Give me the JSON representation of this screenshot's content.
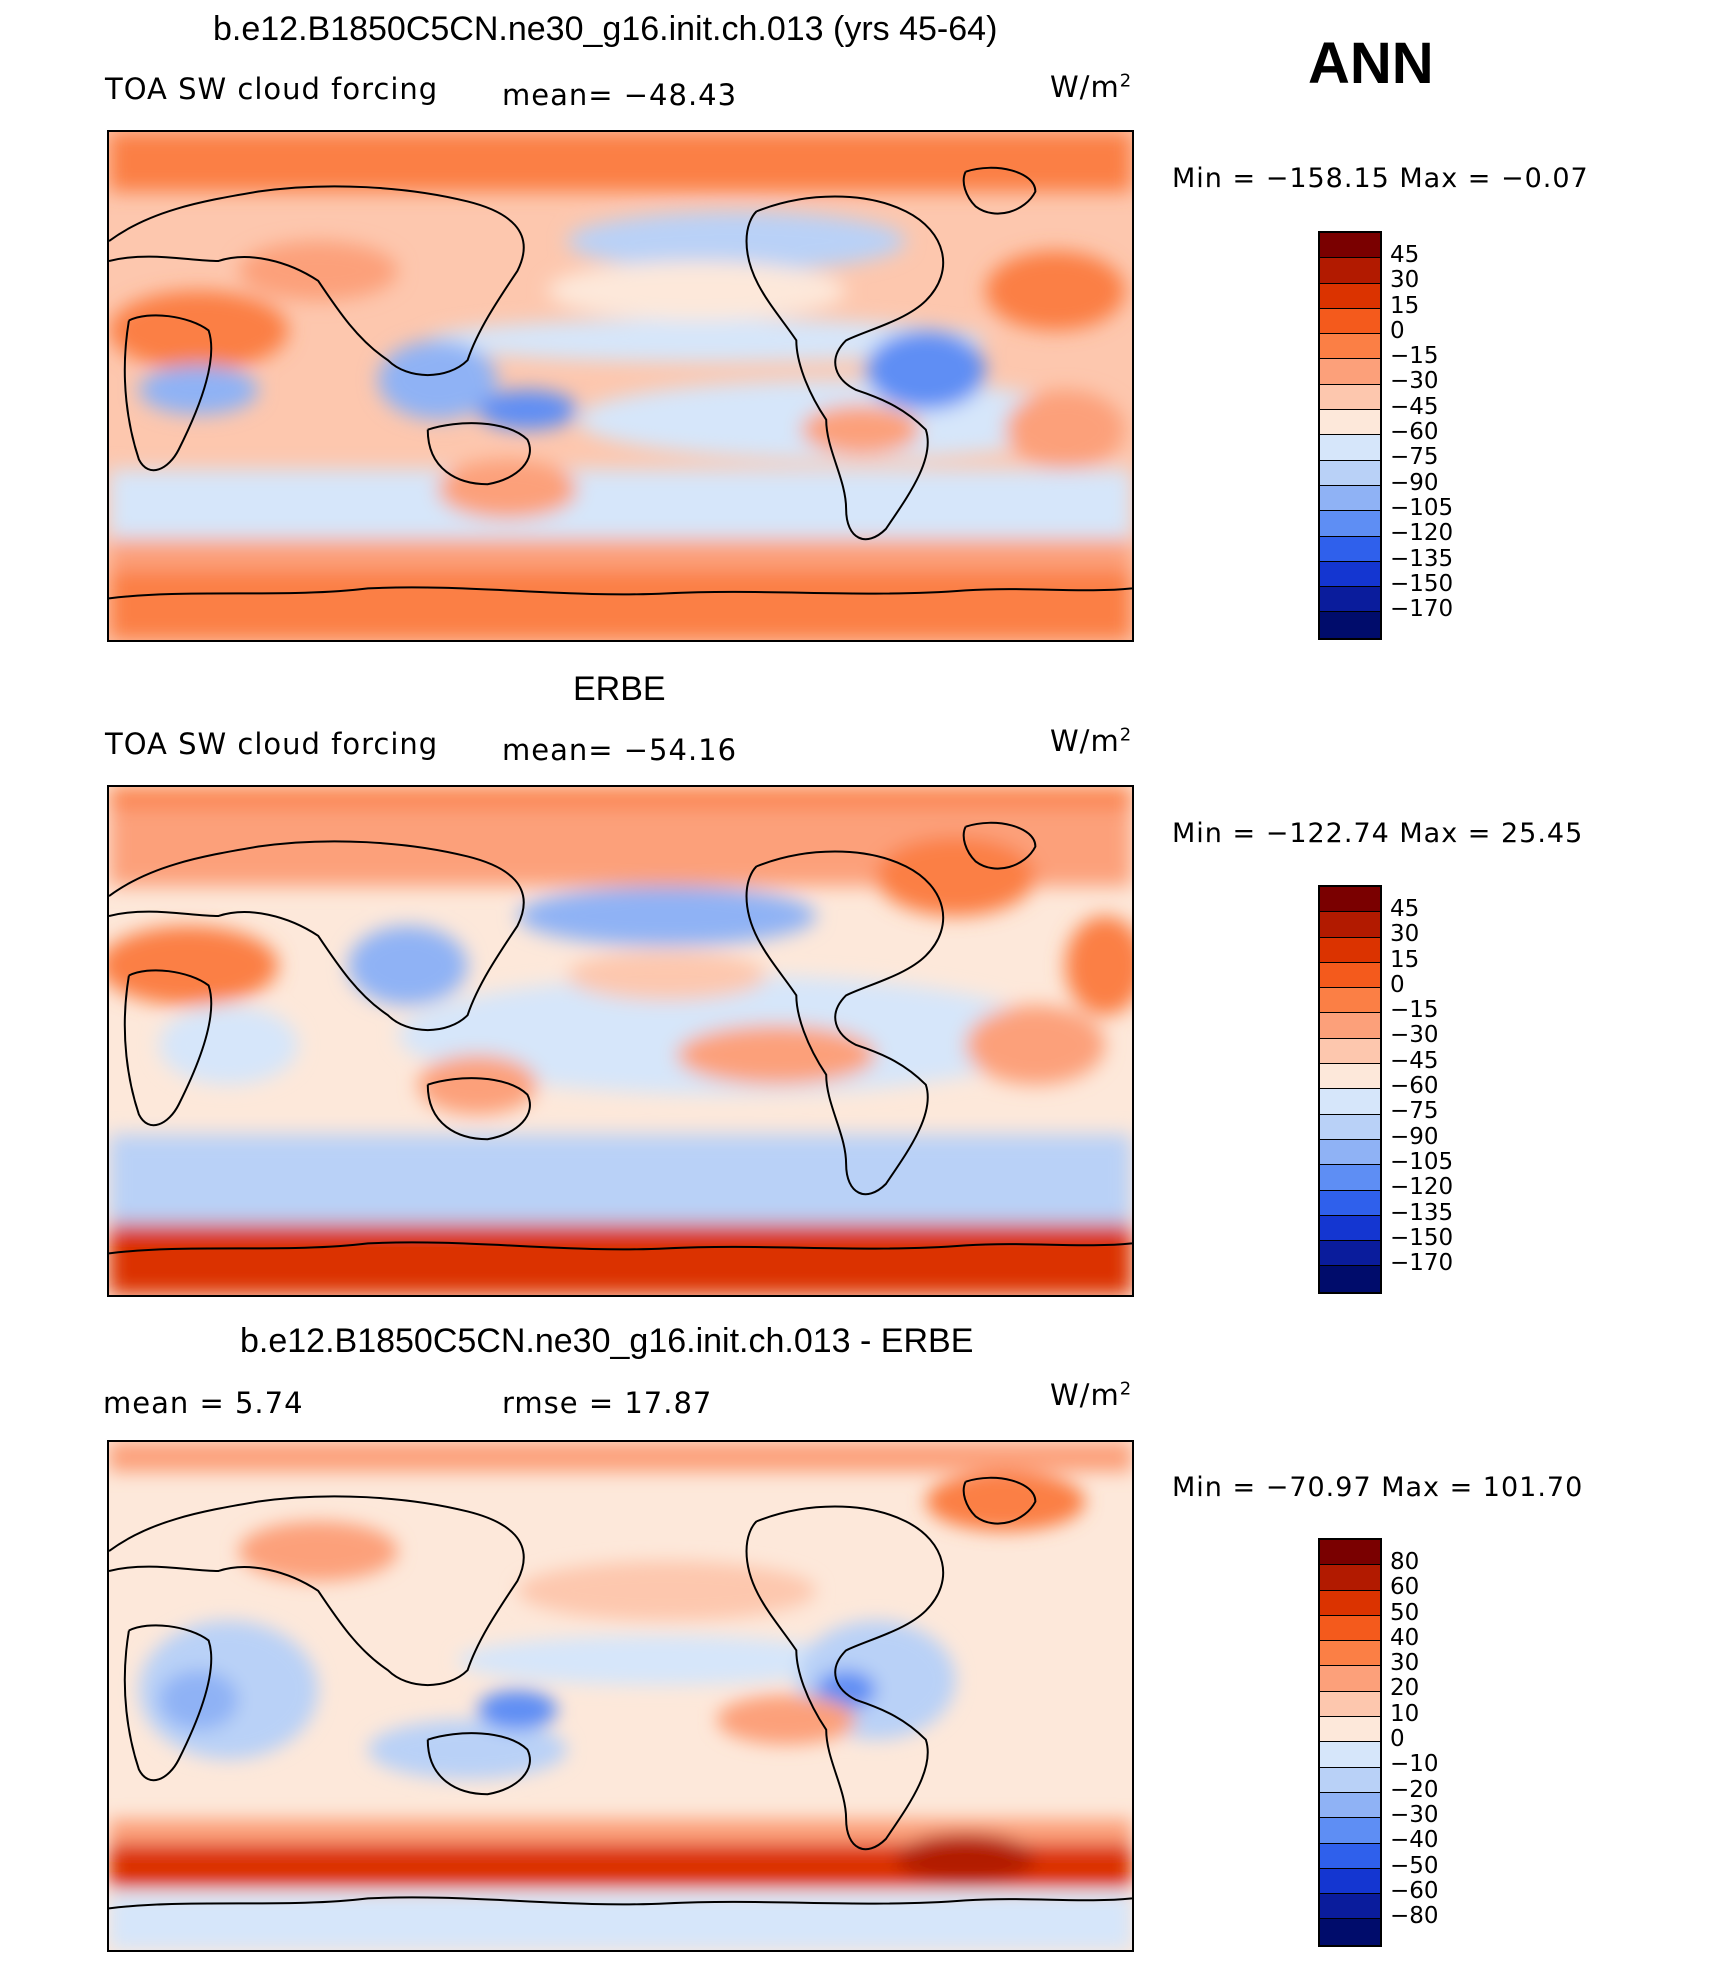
{
  "season": "ANN",
  "colors": {
    "map_ocean_base": "#fde8da",
    "coast": "#000000"
  },
  "panels": [
    {
      "title": "b.e12.B1850C5CN.ne30_g16.init.ch.013 (yrs 45-64)",
      "left_label": "TOA SW cloud forcing",
      "mid_label": "mean=  −48.43",
      "units": "W/m",
      "units_exp": "2",
      "minmax": "Min  =  −158.15  Max  =    −0.07",
      "colorbar": {
        "labels": [
          "45",
          "30",
          "15",
          "0",
          "−15",
          "−30",
          "−45",
          "−60",
          "−75",
          "−90",
          "−105",
          "−120",
          "−135",
          "−150",
          "−170"
        ],
        "colors": [
          "#7a0000",
          "#b21a00",
          "#db3300",
          "#f45a1c",
          "#fb7f45",
          "#fca07a",
          "#fdc7ae",
          "#fde8da",
          "#d6e6fa",
          "#b9d1f7",
          "#8fb2f5",
          "#5e8ef4",
          "#2f60ec",
          "#1436d1",
          "#0a1c9c",
          "#000c6b"
        ]
      }
    },
    {
      "title": "ERBE",
      "left_label": "TOA SW cloud forcing",
      "mid_label": "mean=  −54.16",
      "units": "W/m",
      "units_exp": "2",
      "minmax": "Min  =  −122.74  Max  =    25.45",
      "colorbar": {
        "labels": [
          "45",
          "30",
          "15",
          "0",
          "−15",
          "−30",
          "−45",
          "−60",
          "−75",
          "−90",
          "−105",
          "−120",
          "−135",
          "−150",
          "−170"
        ],
        "colors": [
          "#7a0000",
          "#b21a00",
          "#db3300",
          "#f45a1c",
          "#fb7f45",
          "#fca07a",
          "#fdc7ae",
          "#fde8da",
          "#d6e6fa",
          "#b9d1f7",
          "#8fb2f5",
          "#5e8ef4",
          "#2f60ec",
          "#1436d1",
          "#0a1c9c",
          "#000c6b"
        ]
      }
    },
    {
      "title": "b.e12.B1850C5CN.ne30_g16.init.ch.013 - ERBE",
      "left_label": "mean  =      5.74",
      "mid_label": "rmse  =     17.87",
      "units": "W/m",
      "units_exp": "2",
      "minmax": "Min  =  −70.97  Max  =  101.70",
      "colorbar": {
        "labels": [
          "80",
          "60",
          "50",
          "40",
          "30",
          "20",
          "10",
          "0",
          "−10",
          "−20",
          "−30",
          "−40",
          "−50",
          "−60",
          "−80"
        ],
        "colors": [
          "#7a0000",
          "#b21a00",
          "#db3300",
          "#f45a1c",
          "#fb7f45",
          "#fca07a",
          "#fdc7ae",
          "#fde8da",
          "#d6e6fa",
          "#b9d1f7",
          "#8fb2f5",
          "#5e8ef4",
          "#2f60ec",
          "#1436d1",
          "#0a1c9c",
          "#000c6b"
        ]
      }
    }
  ]
}
